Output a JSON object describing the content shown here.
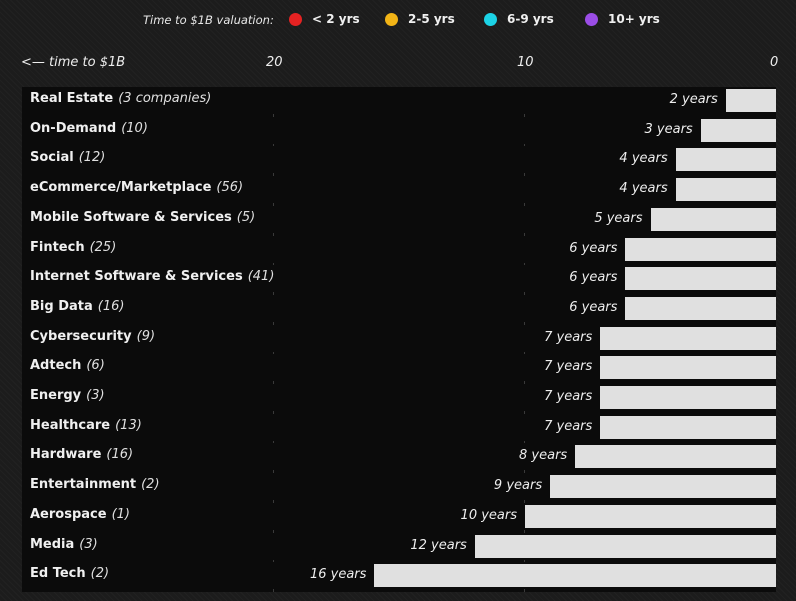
{
  "legend": {
    "title": "Time to $1B valuation:",
    "items": [
      {
        "label": "< 2 yrs",
        "color": "#e52222"
      },
      {
        "label": "2-5 yrs",
        "color": "#f2b416"
      },
      {
        "label": "6-9 yrs",
        "color": "#1cd3e6"
      },
      {
        "label": "10+ yrs",
        "color": "#9b4de6"
      }
    ]
  },
  "axis": {
    "label": "<— time to $1B",
    "ticks": [
      "20",
      "10",
      "0"
    ]
  },
  "chart_data": {
    "type": "bar",
    "orientation": "horizontal",
    "direction": "right-to-left",
    "xlim": [
      0,
      20
    ],
    "grid": true,
    "categories": [
      {
        "name": "Real Estate",
        "count": "(3 companies)",
        "value": 2,
        "label": "2 years"
      },
      {
        "name": "On-Demand",
        "count": "(10)",
        "value": 3,
        "label": "3 years"
      },
      {
        "name": "Social",
        "count": "(12)",
        "value": 4,
        "label": "4 years"
      },
      {
        "name": "eCommerce/Marketplace",
        "count": "(56)",
        "value": 4,
        "label": "4 years"
      },
      {
        "name": "Mobile Software & Services",
        "count": "(5)",
        "value": 5,
        "label": "5 years"
      },
      {
        "name": "Fintech",
        "count": "(25)",
        "value": 6,
        "label": "6 years"
      },
      {
        "name": "Internet Software & Services",
        "count": "(41)",
        "value": 6,
        "label": "6 years"
      },
      {
        "name": "Big Data",
        "count": "(16)",
        "value": 6,
        "label": "6 years"
      },
      {
        "name": "Cybersecurity",
        "count": "(9)",
        "value": 7,
        "label": "7 years"
      },
      {
        "name": "Adtech",
        "count": "(6)",
        "value": 7,
        "label": "7 years"
      },
      {
        "name": "Energy",
        "count": "(3)",
        "value": 7,
        "label": "7 years"
      },
      {
        "name": "Healthcare",
        "count": "(13)",
        "value": 7,
        "label": "7 years"
      },
      {
        "name": "Hardware",
        "count": "(16)",
        "value": 8,
        "label": "8 years"
      },
      {
        "name": "Entertainment",
        "count": "(2)",
        "value": 9,
        "label": "9 years"
      },
      {
        "name": "Aerospace",
        "count": "(1)",
        "value": 10,
        "label": "10 years"
      },
      {
        "name": "Media",
        "count": "(3)",
        "value": 12,
        "label": "12 years"
      },
      {
        "name": "Ed Tech",
        "count": "(2)",
        "value": 16,
        "label": "16 years"
      }
    ],
    "bar_color": "#e0e0e0"
  }
}
